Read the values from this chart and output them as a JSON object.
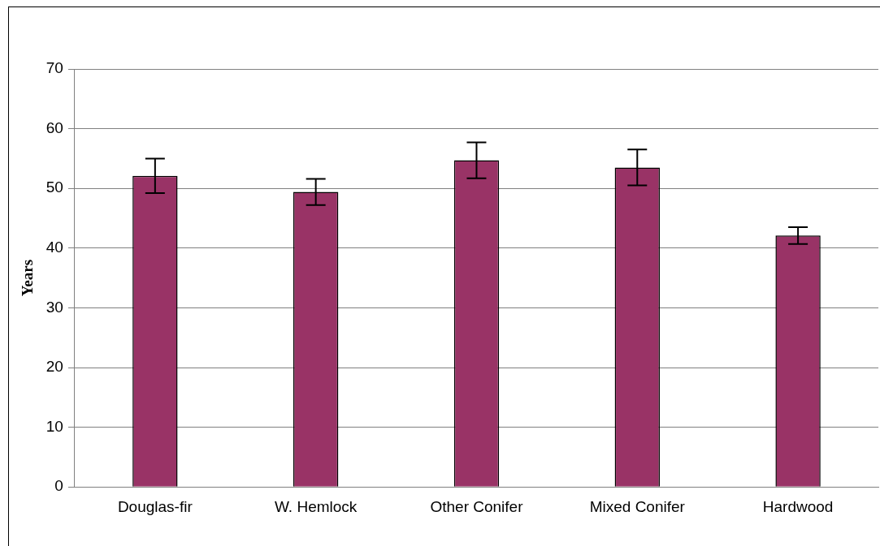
{
  "chart_data": {
    "type": "bar",
    "ylabel": "Years",
    "categories": [
      "Douglas-fir",
      "W. Hemlock",
      "Other Conifer",
      "Mixed Conifer",
      "Hardwood"
    ],
    "values": [
      52.1,
      49.4,
      54.7,
      53.5,
      42.1
    ],
    "errors": [
      2.9,
      2.2,
      3,
      3,
      1.4
    ],
    "color": "#993366",
    "ylim": [
      0,
      70
    ],
    "yticks": [
      0,
      10,
      20,
      30,
      40,
      50,
      60,
      70
    ],
    "grid": "y"
  }
}
